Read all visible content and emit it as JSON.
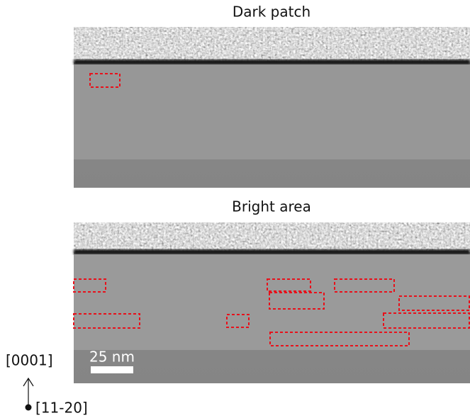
{
  "panels": [
    {
      "title": "Dark patch"
    },
    {
      "title": "Bright area"
    }
  ],
  "scale_bar": {
    "label": "25 nm"
  },
  "axes": {
    "up": "[0001]",
    "out": "[11-20]"
  }
}
